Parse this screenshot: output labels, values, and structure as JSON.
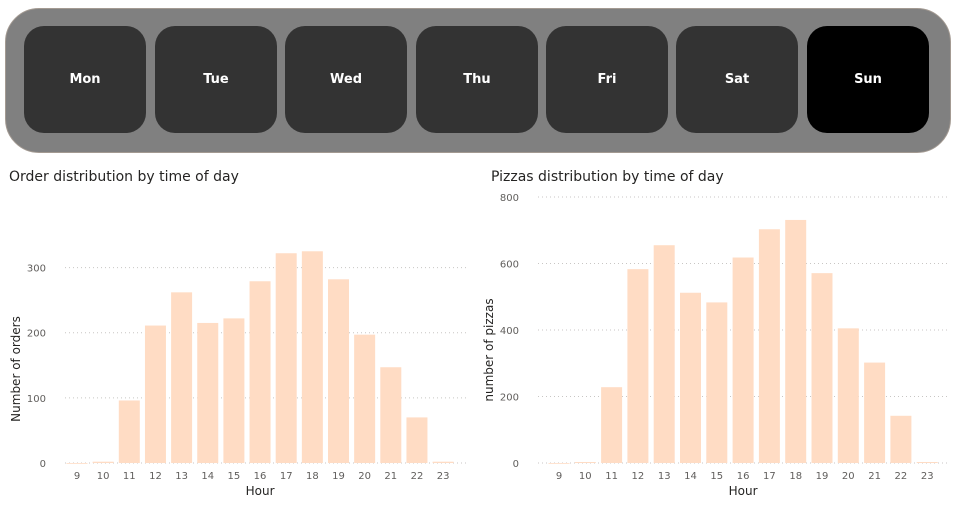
{
  "slicer": {
    "days": [
      "Mon",
      "Tue",
      "Wed",
      "Thu",
      "Fri",
      "Sat",
      "Sun"
    ],
    "selected": "Sun",
    "colors": {
      "background": "#808080",
      "button": "#333333",
      "selected": "#000000",
      "text": "#ffffff"
    }
  },
  "bar_color": "#ffdcc4",
  "chart_data": [
    {
      "type": "bar",
      "title": "Order distribution by time of day",
      "xlabel": "Hour",
      "ylabel": "Number of orders",
      "categories": [
        "9",
        "10",
        "11",
        "12",
        "13",
        "14",
        "15",
        "16",
        "17",
        "18",
        "19",
        "20",
        "21",
        "22",
        "23"
      ],
      "values": [
        0,
        2,
        96,
        211,
        262,
        215,
        222,
        279,
        322,
        325,
        282,
        197,
        147,
        70,
        2
      ],
      "ylim": [
        0,
        350
      ],
      "yticks": [
        0,
        100,
        200,
        300
      ],
      "grid": true
    },
    {
      "type": "bar",
      "title": "Pizzas distribution by time of day",
      "xlabel": "Hour",
      "ylabel": "number of pizzas",
      "categories": [
        "9",
        "10",
        "11",
        "12",
        "13",
        "14",
        "15",
        "16",
        "17",
        "18",
        "19",
        "20",
        "21",
        "22",
        "23"
      ],
      "values": [
        0,
        3,
        228,
        583,
        655,
        512,
        483,
        618,
        703,
        731,
        571,
        405,
        302,
        142,
        3
      ],
      "ylim": [
        0,
        800
      ],
      "yticks": [
        0,
        200,
        400,
        600,
        800
      ],
      "grid": true
    }
  ]
}
